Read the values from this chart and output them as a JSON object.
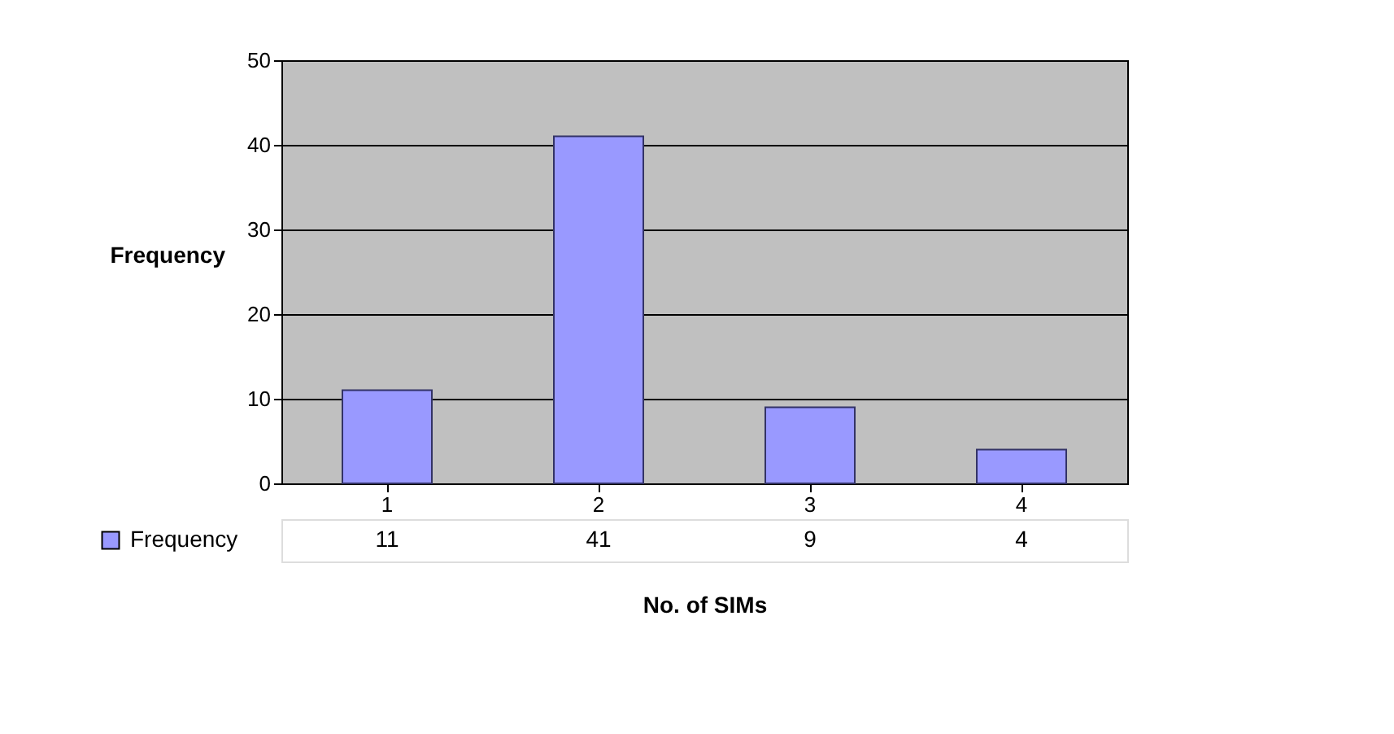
{
  "chart_data": {
    "type": "bar",
    "ylabel": "Frequency",
    "xlabel": "No. of SIMs",
    "categories": [
      "1",
      "2",
      "3",
      "4"
    ],
    "series": [
      {
        "name": "Frequency",
        "color": "#9999ff",
        "values": [
          11,
          41,
          9,
          4
        ]
      }
    ],
    "ylim": [
      0,
      50
    ],
    "yticks": [
      0,
      10,
      20,
      30,
      40,
      50
    ],
    "grid": "y",
    "data_labels": true,
    "legend": "bottom left"
  }
}
